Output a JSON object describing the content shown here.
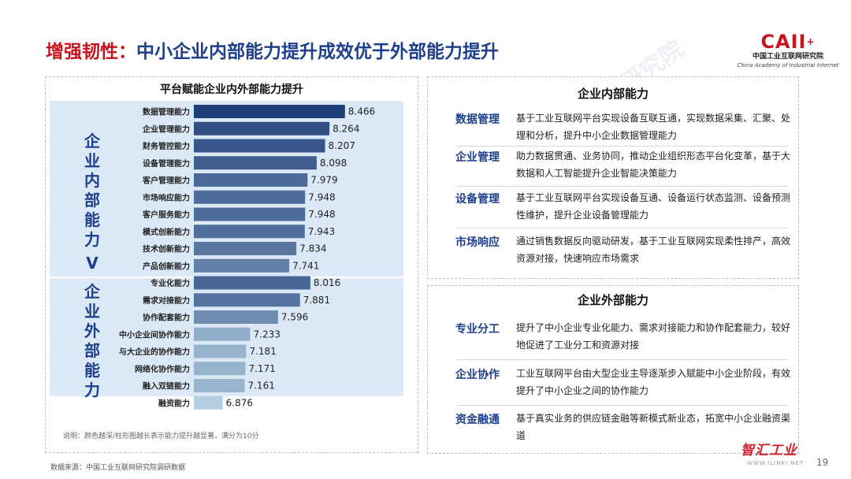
{
  "header": {
    "title_prefix": "增强韧性：",
    "title_main": "中小企业内部能力提升成效优于外部能力提升"
  },
  "logo": {
    "mark": "CAII",
    "plus": "+",
    "cn": "中国工业互联网研究院",
    "en": "China Academy of Industrial Internet"
  },
  "chart_data": {
    "type": "bar",
    "orientation": "horizontal",
    "title": "平台赋能企业内外部能力提升",
    "note": "说明：颜色越深/柱形图越长表示能力提升越显著，满分为10分",
    "groups": [
      {
        "label": "企业内部能力",
        "chars": [
          "企",
          "业",
          "内",
          "部",
          "能",
          "力"
        ]
      },
      {
        "label": "企业外部能力",
        "chars": [
          "企",
          "业",
          "外",
          "部",
          "能",
          "力"
        ]
      }
    ],
    "comparison_symbol": "V",
    "categories": [
      "数据管理能力",
      "企业管理能力",
      "财务管控能力",
      "设备管理能力",
      "客户管理能力",
      "市场响应能力",
      "客户服务能力",
      "模式创新能力",
      "技术创新能力",
      "产品创新能力",
      "专业化能力",
      "需求对接能力",
      "协作配套能力",
      "中小企业间协作能力",
      "与大企业的协作能力",
      "网络化协作能力",
      "融入双链能力",
      "融资能力"
    ],
    "values": [
      8.466,
      8.264,
      8.207,
      8.098,
      7.979,
      7.948,
      7.948,
      7.943,
      7.834,
      7.741,
      8.016,
      7.881,
      7.596,
      7.233,
      7.181,
      7.171,
      7.161,
      6.876
    ],
    "value_labels": [
      "8.466",
      "8.264",
      "8.207",
      "8.098",
      "7.979",
      "7.948",
      "7.948",
      "7.943",
      "7.834",
      "7.741",
      "8.016",
      "7.881",
      "7.596",
      "7.233",
      "7.181",
      "7.171",
      "7.161",
      "6.876"
    ],
    "group_sizes": [
      10,
      8
    ],
    "max_score": 10,
    "color_dark": "#1e3f78",
    "color_light": "#b4cde0"
  },
  "internal": {
    "title": "企业内部能力",
    "items": [
      {
        "name": "数据管理",
        "desc": "基于工业互联网平台实现设备互联互通，实现数据采集、汇聚、处理和分析，提升中小企业数据管理能力"
      },
      {
        "name": "企业管理",
        "desc": "助力数据贯通、业务协同，推动企业组织形态平台化变革，基于大数据和人工智能提升企业智能决策能力"
      },
      {
        "name": "设备管理",
        "desc": "基于工业互联网平台实现设备互通、设备运行状态监测、设备预测性维护，提升企业设备管理能力"
      },
      {
        "name": "市场响应",
        "desc": "通过销售数据反向驱动研发，基于工业互联网实现柔性排产，高效资源对接，快速响应市场需求"
      }
    ]
  },
  "external": {
    "title": "企业外部能力",
    "items": [
      {
        "name": "专业分工",
        "desc": "提升了中小企业专业化能力、需求对接能力和协作配套能力，较好地促进了工业分工和资源对接"
      },
      {
        "name": "企业协作",
        "desc": "工业互联网平台由大型企业主导逐渐步入赋能中小企业阶段，有效提升了中小企业之间的协作能力"
      },
      {
        "name": "资金融通",
        "desc": "基于真实业务的供应链金融等新模式新业态，拓宽中小企业融资渠道"
      }
    ]
  },
  "footer": {
    "source": "数据来源：中国工业互联网研究院调研数据",
    "page": "19",
    "corner_logo": "智汇工业",
    "corner_sub": "WWW.ILINKI.NET"
  },
  "watermark_text": "中国工业互联网研究院"
}
